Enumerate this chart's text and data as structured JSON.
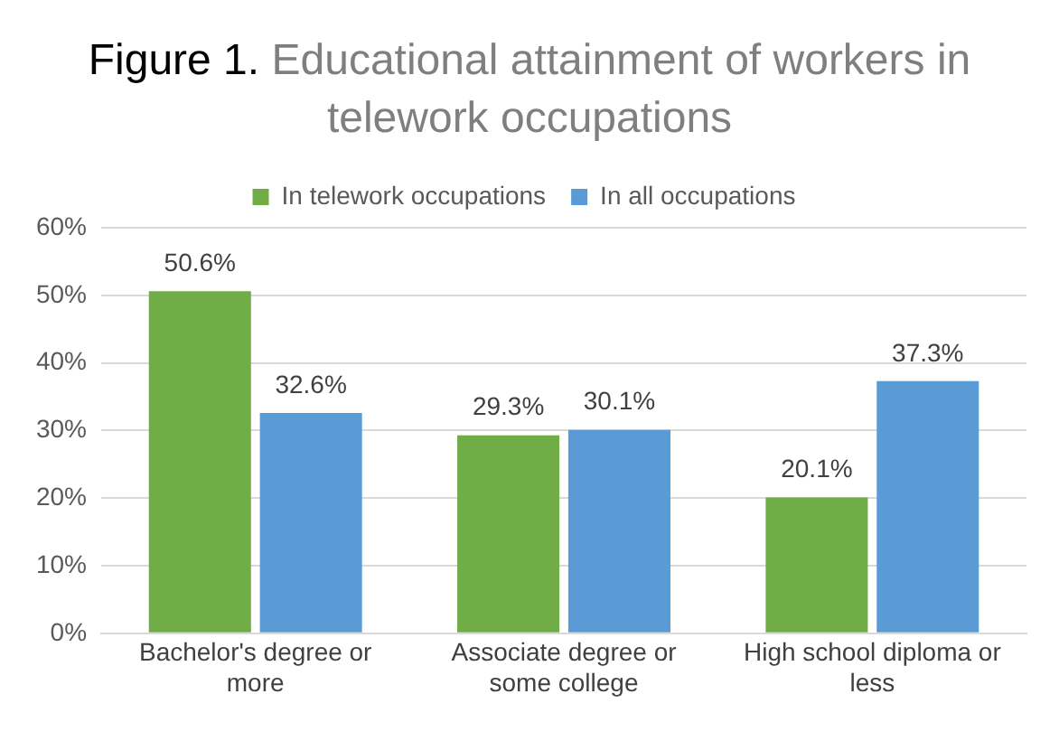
{
  "chart_data": {
    "type": "bar",
    "title": "Figure 1.",
    "subtitle": "Educational attainment of workers in telework occupations",
    "categories": [
      "Bachelor's degree or more",
      "Associate degree or some college",
      "High school diploma or less"
    ],
    "series": [
      {
        "name": "In telework occupations",
        "color": "#70ad47",
        "values": [
          50.6,
          29.3,
          20.1
        ],
        "value_labels": [
          "50.6%",
          "29.3%",
          "20.1%"
        ]
      },
      {
        "name": "In all occupations",
        "color": "#5b9bd5",
        "values": [
          32.6,
          30.1,
          37.3
        ],
        "value_labels": [
          "32.6%",
          "30.1%",
          "37.3%"
        ]
      }
    ],
    "ylim": [
      0,
      60
    ],
    "yticks": [
      {
        "value": 0,
        "label": "0%"
      },
      {
        "value": 10,
        "label": "10%"
      },
      {
        "value": 20,
        "label": "20%"
      },
      {
        "value": 30,
        "label": "30%"
      },
      {
        "value": 40,
        "label": "40%"
      },
      {
        "value": 50,
        "label": "50%"
      },
      {
        "value": 60,
        "label": "60%"
      }
    ],
    "grid": "y",
    "legend": "top"
  }
}
